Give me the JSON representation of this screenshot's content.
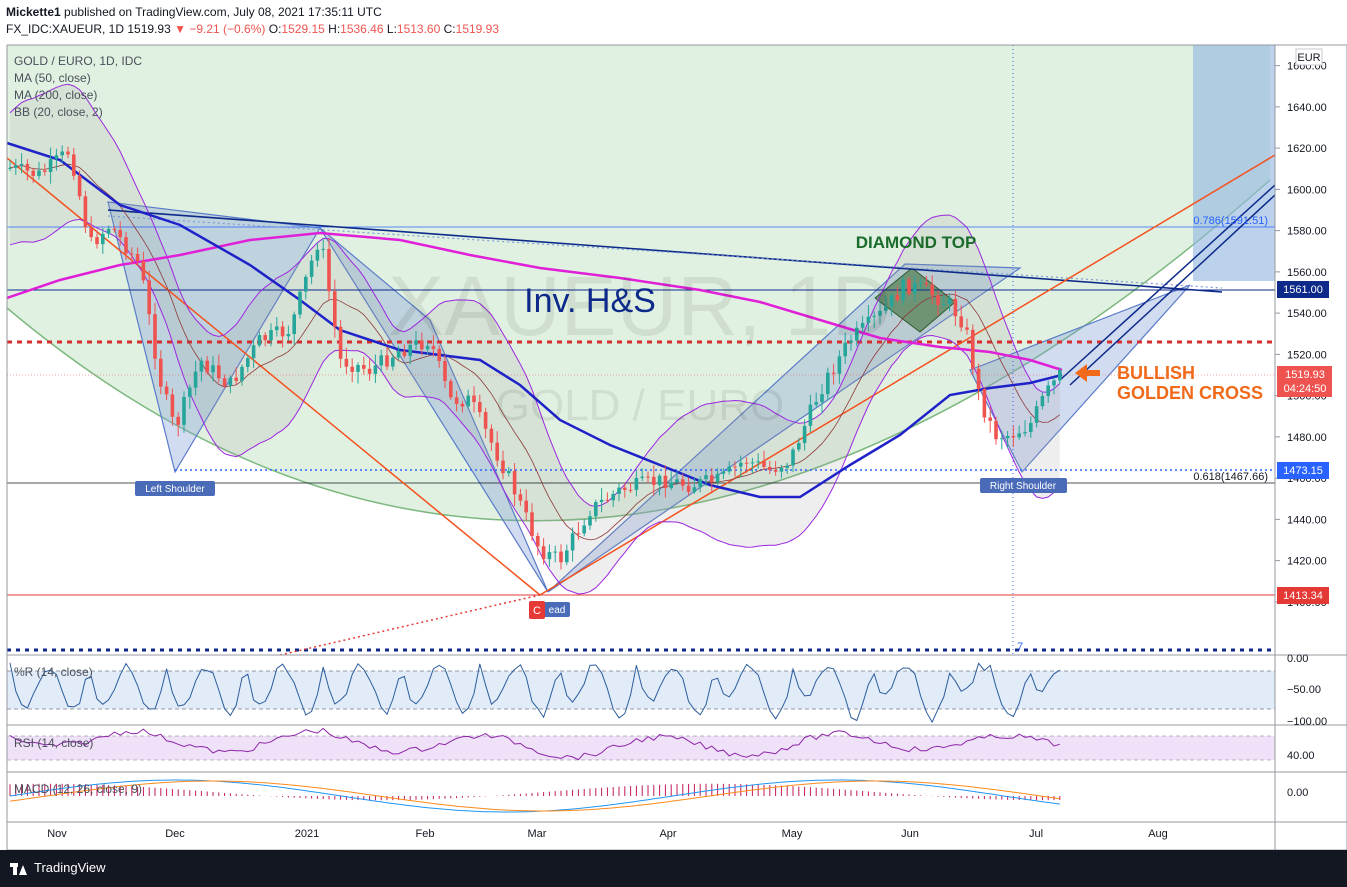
{
  "header": {
    "author": "Mickette1",
    "published_text": "published on TradingView.com, July 08, 2021 17:35:11 UTC",
    "symbol": "FX_IDC:XAUEUR, 1D",
    "last": "1519.93",
    "arrow": "▼",
    "change": "−9.21 (−0.6%)",
    "o_label": "O:",
    "o_value": "1529.15",
    "h_label": "H:",
    "h_value": "1536.46",
    "l_label": "L:",
    "l_value": "1513.60",
    "c_label": "C:",
    "c_value": "1519.93"
  },
  "legend": {
    "title": "GOLD / EURO, 1D, IDC",
    "ma50": "MA (50, close)",
    "ma200": "MA (200, close)",
    "bb": "BB (20, close, 2)",
    "wr": "%R (14, close)",
    "rsi": "RSI (14, close)",
    "macd": "MACD (12, 26, close, 9)"
  },
  "watermark": {
    "big": "XAUEUR, 1D",
    "small": "GOLD / EURO"
  },
  "annotations": {
    "inv_hs": "Inv. H&S",
    "diamond": "DIAMOND TOP",
    "bullish1": "BULLISH",
    "bullish2": "GOLDEN CROSS",
    "left_shoulder": "Left Shoulder",
    "head": "ead",
    "right_shoulder": "Right Shoulder",
    "c_marker": "C",
    "fib_786": "0.786(1591.51)",
    "fib_618": "0.618(1467.66)",
    "seven": "7"
  },
  "colors": {
    "up": "#26a69a",
    "down": "#ef5350",
    "ma50": "#1e22c8",
    "ma200": "#e020d8",
    "bb": "#9c27e0",
    "orange": "#f06a1a",
    "green_text": "#1b6b2b",
    "navy": "#0d2a8a"
  },
  "price_axis": {
    "unit": "EUR",
    "ticks": [
      "1660.00",
      "1640.00",
      "1620.00",
      "1600.00",
      "1580.00",
      "1560.00",
      "1540.00",
      "1520.00",
      "1500.00",
      "1480.00",
      "1460.00",
      "1440.00",
      "1420.00",
      "1400.00"
    ],
    "tick_values": [
      1660,
      1640,
      1620,
      1600,
      1580,
      1560,
      1540,
      1520,
      1500,
      1480,
      1460,
      1440,
      1420,
      1400
    ],
    "labels": {
      "l1561": "1561.00",
      "l1519": "1519.93",
      "countdown": "04:24:50",
      "l1473": "1473.15",
      "l1413": "1413.34"
    }
  },
  "wr_axis": {
    "ticks": [
      "0.00",
      "−50.00",
      "−100.00"
    ]
  },
  "rsi_axis": {
    "ticks": [
      "40.00"
    ]
  },
  "macd_axis": {
    "ticks": [
      "0.00"
    ]
  },
  "time_axis": {
    "labels": [
      "Nov",
      "Dec",
      "2021",
      "Feb",
      "Mar",
      "Apr",
      "May",
      "Jun",
      "Jul",
      "Aug"
    ]
  },
  "chart_data": {
    "type": "candlestick",
    "title": "GOLD / EURO, 1D, IDC",
    "ylabel": "EUR",
    "ylim": [
      1385,
      1675
    ],
    "series": [
      {
        "name": "MA (50, close)"
      },
      {
        "name": "MA (200, close)"
      },
      {
        "name": "BB (20, close, 2)"
      }
    ],
    "key_levels": [
      1591.51,
      1561.0,
      1536.0,
      1519.93,
      1473.15,
      1467.66,
      1413.34
    ],
    "last_close": 1519.93
  },
  "footer": {
    "brand": "TradingView"
  }
}
